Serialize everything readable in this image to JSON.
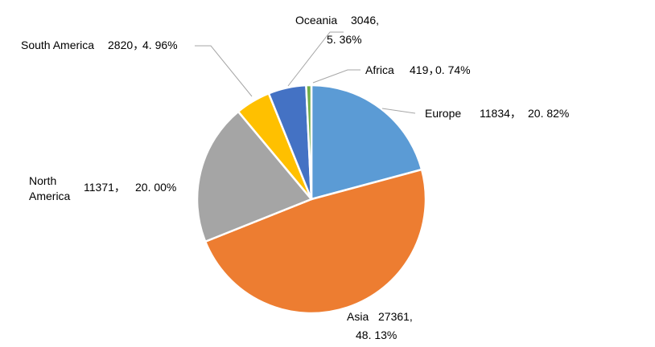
{
  "chart_data": {
    "type": "pie",
    "title": "",
    "start": "top",
    "direction": "clockwise",
    "legend": "none",
    "slices": [
      {
        "name": "Europe",
        "value": 11834,
        "percent": "20.82%",
        "value_label": "11834，",
        "percent_label": "20. 82%",
        "color": "#5B9BD5"
      },
      {
        "name": "Asia",
        "value": 27361,
        "percent": "48.13%",
        "value_label": "27361,",
        "percent_label": "48. 13%",
        "color": "#ED7D31"
      },
      {
        "name": "North America",
        "value": 11371,
        "percent": "20.00%",
        "name_lines": [
          "North",
          "America"
        ],
        "value_label": "11371，",
        "percent_label": "20. 00%",
        "color": "#A5A5A5"
      },
      {
        "name": "South America",
        "value": 2820,
        "percent": "4.96%",
        "value_label": "2820，",
        "percent_label": "4. 96%",
        "color": "#FFC000"
      },
      {
        "name": "Oceania",
        "value": 3046,
        "percent": "5.36%",
        "value_label": "3046,",
        "percent_label": "5. 36%",
        "color": "#4472C4"
      },
      {
        "name": "Africa",
        "value": 419,
        "percent": "0.74%",
        "value_label": "419，",
        "percent_label": "0. 74%",
        "color": "#70AD47"
      }
    ]
  }
}
